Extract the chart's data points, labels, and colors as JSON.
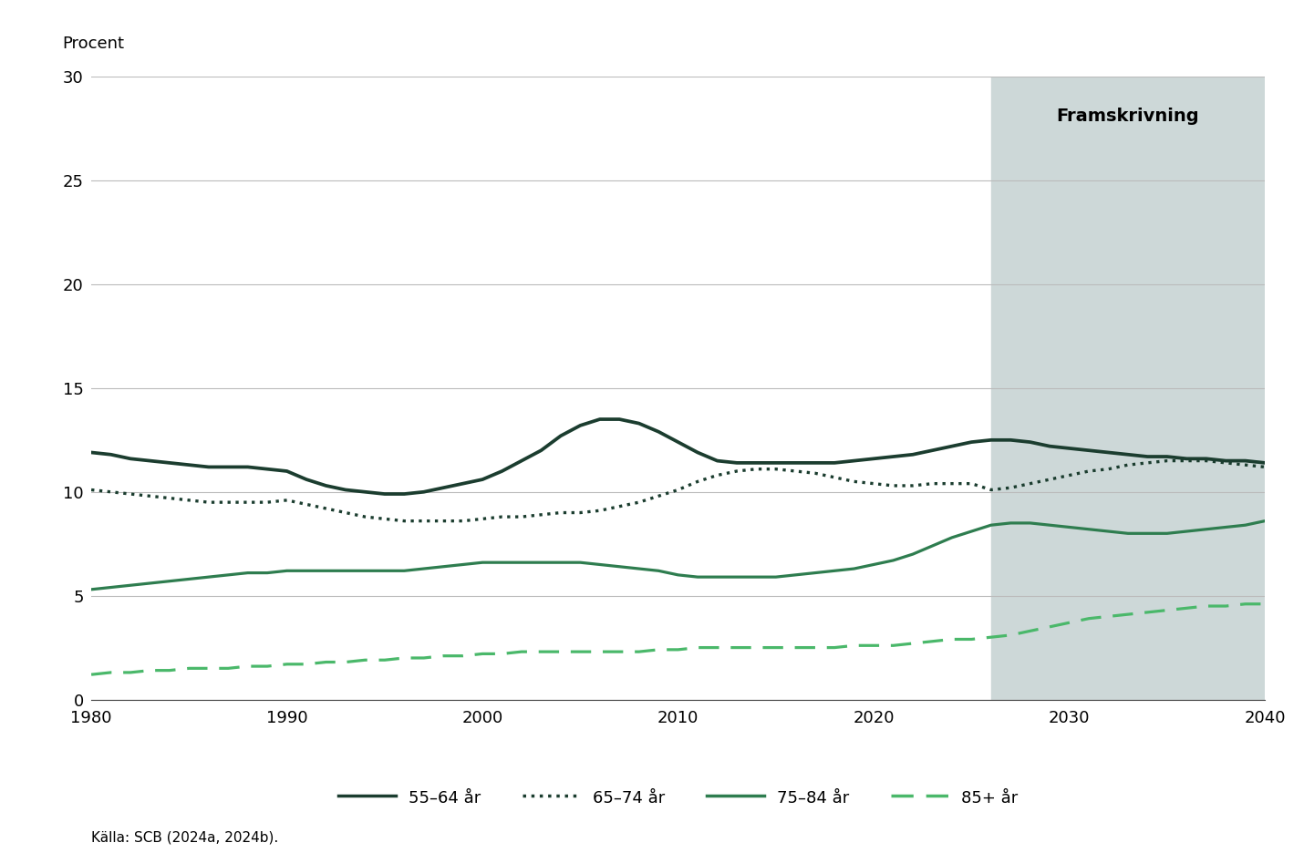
{
  "ylabel": "Procent",
  "ylim": [
    0,
    30
  ],
  "yticks": [
    0,
    5,
    10,
    15,
    20,
    25,
    30
  ],
  "xlim": [
    1980,
    2040
  ],
  "xticks": [
    1980,
    1990,
    2000,
    2010,
    2020,
    2030,
    2040
  ],
  "forecast_start": 2026,
  "forecast_label": "Framskrivning",
  "source": "Källa: SCB (2024a, 2024b).",
  "background_color": "#ffffff",
  "forecast_bg_color": "#cdd8d8",
  "grid_color": "#bbbbbb",
  "line_color_dark": "#1b3d2f",
  "line_color_mid": "#2e7d4f",
  "line_color_light": "#4ab86a",
  "legend_entries": [
    "55–64 år",
    "65–74 år",
    "75–84 år",
    "85+ år"
  ],
  "series_55_64": {
    "years": [
      1980,
      1981,
      1982,
      1983,
      1984,
      1985,
      1986,
      1987,
      1988,
      1989,
      1990,
      1991,
      1992,
      1993,
      1994,
      1995,
      1996,
      1997,
      1998,
      1999,
      2000,
      2001,
      2002,
      2003,
      2004,
      2005,
      2006,
      2007,
      2008,
      2009,
      2010,
      2011,
      2012,
      2013,
      2014,
      2015,
      2016,
      2017,
      2018,
      2019,
      2020,
      2021,
      2022,
      2023,
      2024,
      2025,
      2026,
      2027,
      2028,
      2029,
      2030,
      2031,
      2032,
      2033,
      2034,
      2035,
      2036,
      2037,
      2038,
      2039,
      2040
    ],
    "values": [
      11.9,
      11.8,
      11.6,
      11.5,
      11.4,
      11.3,
      11.2,
      11.2,
      11.2,
      11.1,
      11.0,
      10.6,
      10.3,
      10.1,
      10.0,
      9.9,
      9.9,
      10.0,
      10.2,
      10.4,
      10.6,
      11.0,
      11.5,
      12.0,
      12.7,
      13.2,
      13.5,
      13.5,
      13.3,
      12.9,
      12.4,
      11.9,
      11.5,
      11.4,
      11.4,
      11.4,
      11.4,
      11.4,
      11.4,
      11.5,
      11.6,
      11.7,
      11.8,
      12.0,
      12.2,
      12.4,
      12.5,
      12.5,
      12.4,
      12.2,
      12.1,
      12.0,
      11.9,
      11.8,
      11.7,
      11.7,
      11.6,
      11.6,
      11.5,
      11.5,
      11.4
    ]
  },
  "series_65_74": {
    "years": [
      1980,
      1981,
      1982,
      1983,
      1984,
      1985,
      1986,
      1987,
      1988,
      1989,
      1990,
      1991,
      1992,
      1993,
      1994,
      1995,
      1996,
      1997,
      1998,
      1999,
      2000,
      2001,
      2002,
      2003,
      2004,
      2005,
      2006,
      2007,
      2008,
      2009,
      2010,
      2011,
      2012,
      2013,
      2014,
      2015,
      2016,
      2017,
      2018,
      2019,
      2020,
      2021,
      2022,
      2023,
      2024,
      2025,
      2026,
      2027,
      2028,
      2029,
      2030,
      2031,
      2032,
      2033,
      2034,
      2035,
      2036,
      2037,
      2038,
      2039,
      2040
    ],
    "values": [
      10.1,
      10.0,
      9.9,
      9.8,
      9.7,
      9.6,
      9.5,
      9.5,
      9.5,
      9.5,
      9.6,
      9.4,
      9.2,
      9.0,
      8.8,
      8.7,
      8.6,
      8.6,
      8.6,
      8.6,
      8.7,
      8.8,
      8.8,
      8.9,
      9.0,
      9.0,
      9.1,
      9.3,
      9.5,
      9.8,
      10.1,
      10.5,
      10.8,
      11.0,
      11.1,
      11.1,
      11.0,
      10.9,
      10.7,
      10.5,
      10.4,
      10.3,
      10.3,
      10.4,
      10.4,
      10.4,
      10.1,
      10.2,
      10.4,
      10.6,
      10.8,
      11.0,
      11.1,
      11.3,
      11.4,
      11.5,
      11.5,
      11.5,
      11.4,
      11.3,
      11.2
    ]
  },
  "series_75_84": {
    "years": [
      1980,
      1981,
      1982,
      1983,
      1984,
      1985,
      1986,
      1987,
      1988,
      1989,
      1990,
      1991,
      1992,
      1993,
      1994,
      1995,
      1996,
      1997,
      1998,
      1999,
      2000,
      2001,
      2002,
      2003,
      2004,
      2005,
      2006,
      2007,
      2008,
      2009,
      2010,
      2011,
      2012,
      2013,
      2014,
      2015,
      2016,
      2017,
      2018,
      2019,
      2020,
      2021,
      2022,
      2023,
      2024,
      2025,
      2026,
      2027,
      2028,
      2029,
      2030,
      2031,
      2032,
      2033,
      2034,
      2035,
      2036,
      2037,
      2038,
      2039,
      2040
    ],
    "values": [
      5.3,
      5.4,
      5.5,
      5.6,
      5.7,
      5.8,
      5.9,
      6.0,
      6.1,
      6.1,
      6.2,
      6.2,
      6.2,
      6.2,
      6.2,
      6.2,
      6.2,
      6.3,
      6.4,
      6.5,
      6.6,
      6.6,
      6.6,
      6.6,
      6.6,
      6.6,
      6.5,
      6.4,
      6.3,
      6.2,
      6.0,
      5.9,
      5.9,
      5.9,
      5.9,
      5.9,
      6.0,
      6.1,
      6.2,
      6.3,
      6.5,
      6.7,
      7.0,
      7.4,
      7.8,
      8.1,
      8.4,
      8.5,
      8.5,
      8.4,
      8.3,
      8.2,
      8.1,
      8.0,
      8.0,
      8.0,
      8.1,
      8.2,
      8.3,
      8.4,
      8.6
    ]
  },
  "series_85_plus": {
    "years": [
      1980,
      1981,
      1982,
      1983,
      1984,
      1985,
      1986,
      1987,
      1988,
      1989,
      1990,
      1991,
      1992,
      1993,
      1994,
      1995,
      1996,
      1997,
      1998,
      1999,
      2000,
      2001,
      2002,
      2003,
      2004,
      2005,
      2006,
      2007,
      2008,
      2009,
      2010,
      2011,
      2012,
      2013,
      2014,
      2015,
      2016,
      2017,
      2018,
      2019,
      2020,
      2021,
      2022,
      2023,
      2024,
      2025,
      2026,
      2027,
      2028,
      2029,
      2030,
      2031,
      2032,
      2033,
      2034,
      2035,
      2036,
      2037,
      2038,
      2039,
      2040
    ],
    "values": [
      1.2,
      1.3,
      1.3,
      1.4,
      1.4,
      1.5,
      1.5,
      1.5,
      1.6,
      1.6,
      1.7,
      1.7,
      1.8,
      1.8,
      1.9,
      1.9,
      2.0,
      2.0,
      2.1,
      2.1,
      2.2,
      2.2,
      2.3,
      2.3,
      2.3,
      2.3,
      2.3,
      2.3,
      2.3,
      2.4,
      2.4,
      2.5,
      2.5,
      2.5,
      2.5,
      2.5,
      2.5,
      2.5,
      2.5,
      2.6,
      2.6,
      2.6,
      2.7,
      2.8,
      2.9,
      2.9,
      3.0,
      3.1,
      3.3,
      3.5,
      3.7,
      3.9,
      4.0,
      4.1,
      4.2,
      4.3,
      4.4,
      4.5,
      4.5,
      4.6,
      4.6
    ]
  }
}
